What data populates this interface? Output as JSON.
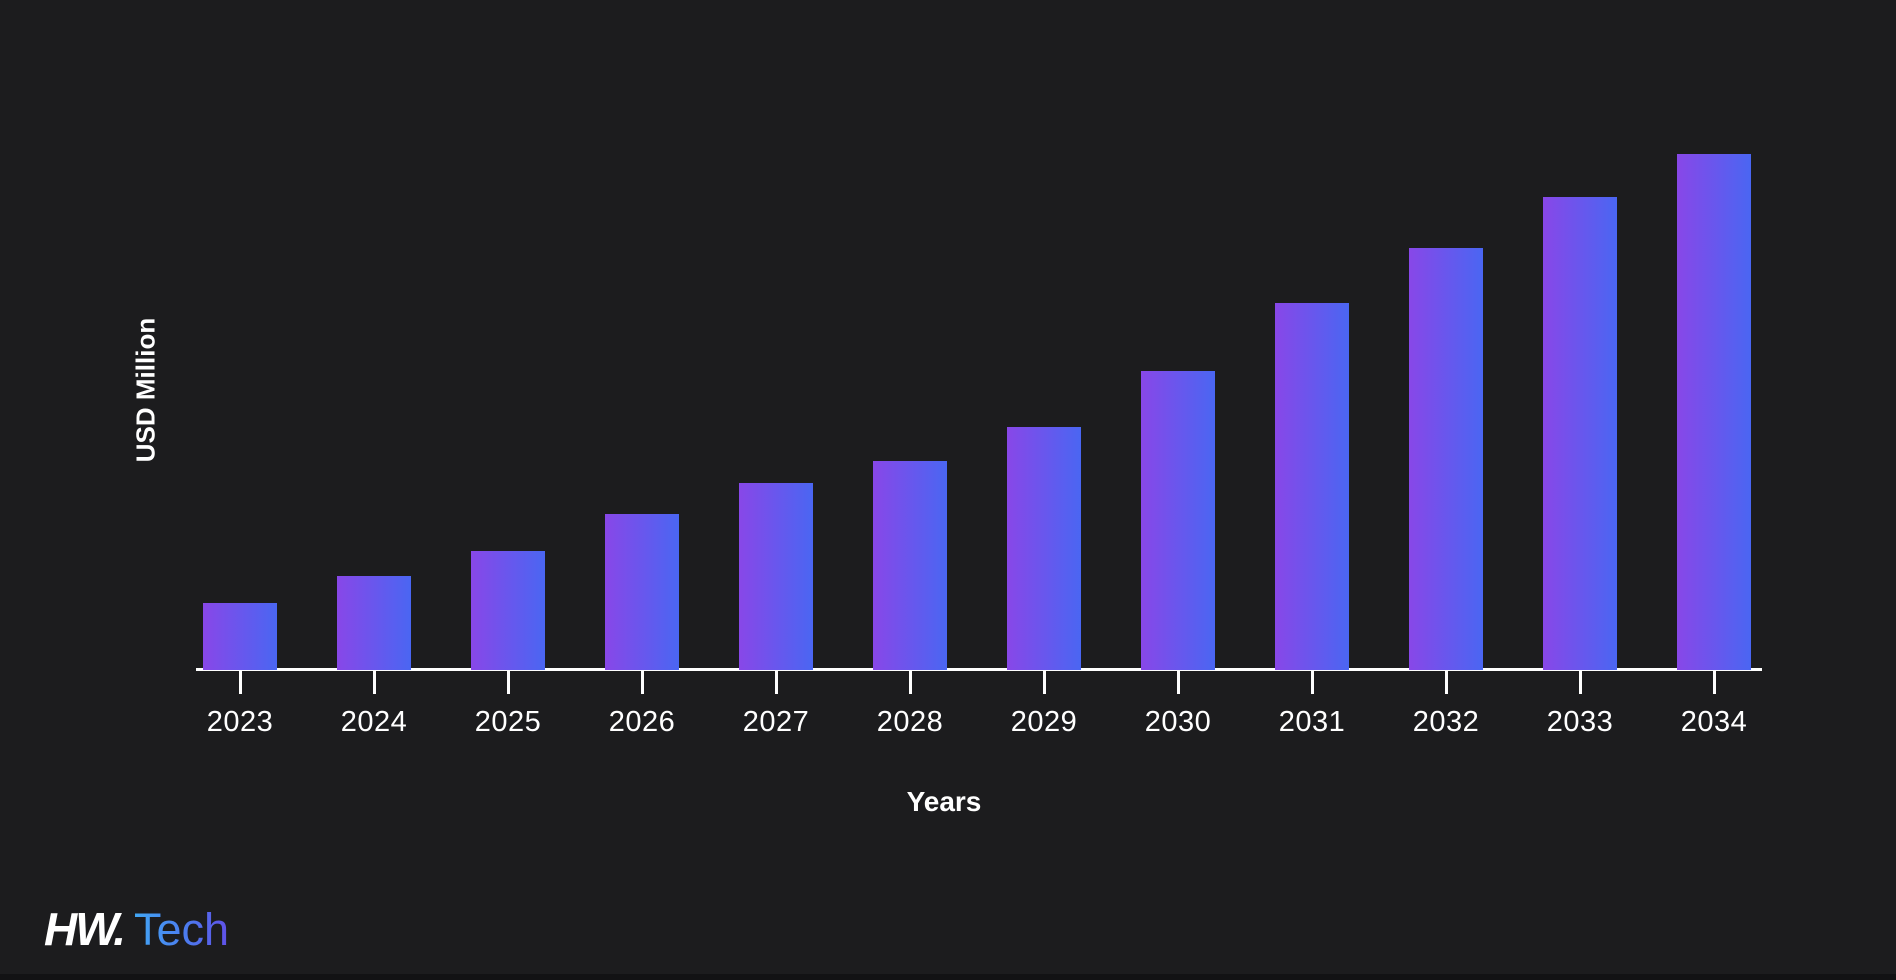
{
  "chart_data": {
    "type": "bar",
    "title": "",
    "categories": [
      "2023",
      "2024",
      "2025",
      "2026",
      "2027",
      "2028",
      "2029",
      "2030",
      "2031",
      "2032",
      "2033",
      "2034"
    ],
    "values": [
      13.0,
      18.2,
      23.1,
      30.2,
      36.2,
      40.5,
      47.1,
      57.9,
      71.1,
      81.8,
      91.7,
      100
    ],
    "values_note": "No numeric value labels, ticks or gridlines are shown in the image; values are relative bar heights expressed as percent of the tallest (2034) bar.",
    "xlabel": "Years",
    "ylabel": "USD Million",
    "ylim": [
      0,
      108
    ],
    "grid": false,
    "legend": "none",
    "bar_color_gradient": [
      "#8847E8",
      "#4A66F2"
    ],
    "axis_color": "#FFFFFF",
    "label_color": "#FFFFFF",
    "background_color": "#1C1C1E"
  },
  "logo": {
    "text_bold": "HW.",
    "text_light": "Tech",
    "bold_color": "#FFFFFF",
    "light_gradient": [
      "#41A7F5",
      "#6050E8"
    ]
  }
}
